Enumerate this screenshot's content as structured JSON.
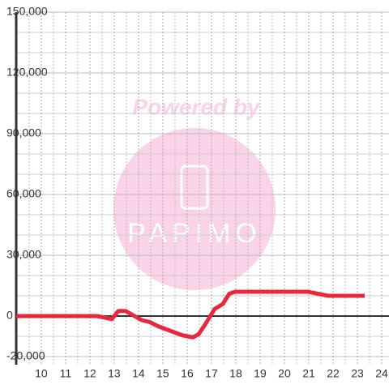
{
  "chart_data": {
    "type": "line",
    "watermark": {
      "title": "Powered by",
      "logo_text": "PAPIMO"
    },
    "x": [
      8.97,
      12.3,
      12.9,
      13.17,
      13.47,
      14.13,
      14.47,
      14.8,
      15.13,
      15.47,
      15.8,
      16.23,
      16.47,
      16.8,
      17.13,
      17.47,
      17.73,
      17.97,
      20.97,
      21.8,
      23.3
    ],
    "series": [
      {
        "color": "#e8283c",
        "values": [
          0,
          0,
          -1500,
          2500,
          2500,
          -2000,
          -3000,
          -5000,
          -6500,
          -8000,
          -9500,
          -10500,
          -9000,
          -3000,
          3500,
          6000,
          11000,
          12000,
          12000,
          10000,
          10000
        ]
      }
    ],
    "xlim": [
      8.97,
      24.3
    ],
    "xticks": [
      10,
      11,
      12,
      13,
      14,
      15,
      16,
      17,
      18,
      19,
      20,
      21,
      22,
      23,
      24
    ],
    "ylim": [
      -24000,
      150000
    ],
    "yticks": [
      {
        "value": -20000,
        "label": "-20,000"
      },
      0,
      {
        "value": 30000,
        "label": "30,000"
      },
      {
        "value": 60000,
        "label": "60,000"
      },
      {
        "value": 90000,
        "label": "90,000"
      },
      {
        "value": 120000,
        "label": "120,000"
      },
      {
        "value": 150000,
        "label": "150,000"
      }
    ],
    "grid": true,
    "minor_grid": true
  }
}
